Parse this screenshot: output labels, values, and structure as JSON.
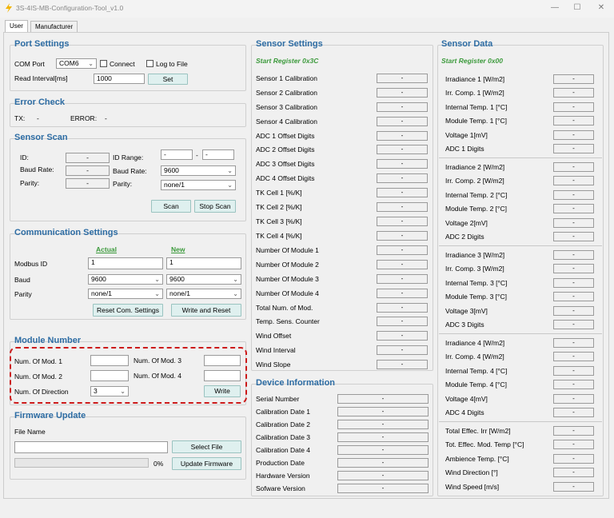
{
  "window": {
    "title": "3S-4IS-MB-Configuration-Tool_v1.0"
  },
  "tabs": [
    "User",
    "Manufacturer"
  ],
  "port": {
    "title": "Port Settings",
    "com_label": "COM Port",
    "com_value": "COM6",
    "connect": "Connect",
    "log": "Log to File",
    "interval_label": "Read Interval[ms]",
    "interval_value": "1000",
    "set": "Set"
  },
  "error": {
    "title": "Error Check",
    "tx_label": "TX:",
    "tx_value": "-",
    "err_label": "ERROR:",
    "err_value": "-"
  },
  "scan": {
    "title": "Sensor Scan",
    "id_label": "ID:",
    "id_value": "-",
    "baud_label": "Baud Rate:",
    "baud_value": "-",
    "parity_label": "Parity:",
    "parity_value": "-",
    "range_label": "ID Range:",
    "range_from": "-",
    "range_dash": "-",
    "range_to": "-",
    "baud2_label": "Baud Rate:",
    "baud2_value": "9600",
    "parity2_label": "Parity:",
    "parity2_value": "none/1",
    "scan": "Scan",
    "stop": "Stop Scan"
  },
  "comm": {
    "title": "Communication Settings",
    "actual": "Actual",
    "new": "New",
    "modbus_label": "Modbus ID",
    "modbus_actual": "1",
    "modbus_new": "1",
    "baud_label": "Baud",
    "baud_actual": "9600",
    "baud_new": "9600",
    "parity_label": "Parity",
    "parity_actual": "none/1",
    "parity_new": "none/1",
    "reset": "Reset Com. Settings",
    "write_reset": "Write and Reset"
  },
  "module": {
    "title": "Module Number",
    "m1": "Num. Of Mod. 1",
    "m2": "Num. Of Mod. 2",
    "m3": "Num. Of Mod. 3",
    "m4": "Num. Of Mod. 4",
    "dir": "Num. Of Direction",
    "dir_value": "3",
    "write": "Write"
  },
  "firmware": {
    "title": "Firmware Update",
    "file": "File Name",
    "select": "Select File",
    "pct": "0%",
    "update": "Update Firmware",
    "progress": 0
  },
  "sensor_settings": {
    "title": "Sensor Settings",
    "start": "Start Register 0x3C",
    "items": [
      "Sensor 1 Calibration",
      "Sensor 2 Calibration",
      "Sensor 3 Calibration",
      "Sensor 4 Calibration",
      "ADC 1 Offset Digits",
      "ADC 2 Offset Digits",
      "ADC 3 Offset Digits",
      "ADC 4 Offset Digits",
      "TK Cell 1 [%/K]",
      "TK Cell 2 [%/K]",
      "TK Cell 3 [%/K]",
      "TK Cell 4 [%/K]",
      "Number Of Module 1",
      "Number Of Module 2",
      "Number Of Module 3",
      "Number Of Module 4",
      "Total Num. of Mod.",
      "Temp. Sens. Counter",
      "Wind Offset",
      "Wind Interval",
      "Wind Slope"
    ],
    "value": "-"
  },
  "device": {
    "title": "Device Information",
    "items": [
      "Serial Number",
      "Calibration Date 1",
      "Calibration Date 2",
      "Calibration Date 3",
      "Calibration Date 4",
      "Production Date",
      "Hardware Version",
      "Sofware Version"
    ],
    "value": "-"
  },
  "sensor_data": {
    "title": "Sensor Data",
    "start": "Start Register 0x00",
    "groups": [
      [
        "Irradiance 1 [W/m2]",
        "Irr. Comp. 1 [W/m2]",
        "Internal Temp. 1 [°C]",
        "Module Temp. 1 [°C]",
        "Voltage 1[mV]",
        "ADC 1 Digits"
      ],
      [
        "Irradiance 2 [W/m2]",
        "Irr. Comp. 2 [W/m2]",
        "Internal Temp. 2 [°C]",
        "Module Temp. 2 [°C]",
        "Voltage 2[mV]",
        "ADC 2 Digits"
      ],
      [
        "Irradiance 3 [W/m2]",
        "Irr. Comp. 3 [W/m2]",
        "Internal Temp. 3 [°C]",
        "Module Temp. 3 [°C]",
        "Voltage 3[mV]",
        "ADC 3 Digits"
      ],
      [
        "Irradiance 4 [W/m2]",
        "Irr. Comp. 4 [W/m2]",
        "Internal Temp. 4 [°C]",
        "Module Temp. 4 [°C]",
        "Voltage 4[mV]",
        "ADC 4 Digits"
      ],
      [
        "Total Effec. Irr [W/m2]",
        "Tot. Effec. Mod. Temp [°C]",
        "Ambience Temp. [°C]",
        "Wind Direction [°]",
        "Wind Speed [m/s]"
      ]
    ],
    "value": "-"
  },
  "colors": {
    "title": "#2e6da4",
    "subtitle": "#3c9a3c",
    "button": "#dff0ef",
    "highlight": "#cc1a1a"
  }
}
